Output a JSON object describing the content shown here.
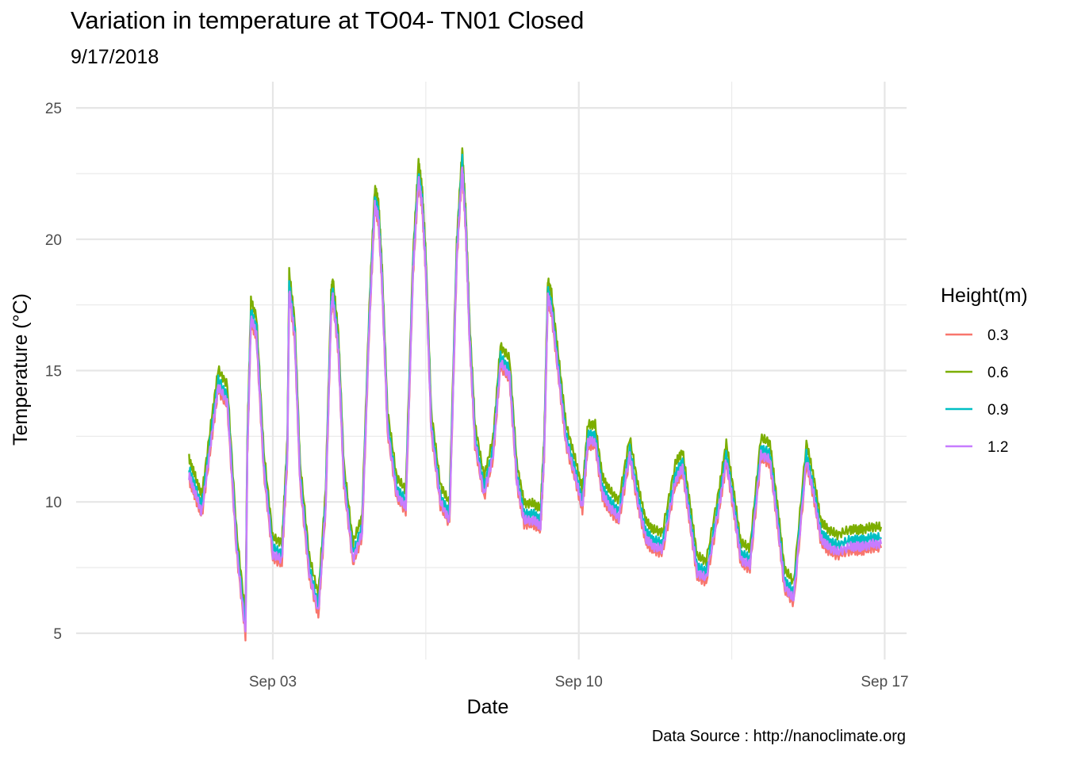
{
  "title": "Variation in temperature at TO04- TN01 Closed",
  "subtitle": "9/17/2018",
  "caption": "Data Source : http://nanoclimate.org",
  "chart_data": {
    "type": "line",
    "title": "Variation in temperature at TO04- TN01 Closed",
    "subtitle": "9/17/2018",
    "xlabel": "Date",
    "ylabel": "Temperature (°C)",
    "x_ticks": [
      {
        "value": "2018-09-03",
        "label": "Sep 03"
      },
      {
        "value": "2018-09-10",
        "label": "Sep 10"
      },
      {
        "value": "2018-09-17",
        "label": "Sep 17"
      }
    ],
    "y_ticks": [
      5,
      10,
      15,
      20,
      25
    ],
    "ylim": [
      4,
      26
    ],
    "xlim": [
      "2018-08-29T12:00",
      "2018-09-17T12:00"
    ],
    "grid": true,
    "legend": {
      "title": "Height(m)",
      "placement": "right"
    },
    "series": [
      {
        "name": "0.3",
        "color": "#F8766D",
        "offset": -0.35
      },
      {
        "name": "0.6",
        "color": "#7CAE00",
        "offset": 0.45
      },
      {
        "name": "0.9",
        "color": "#00BFC4",
        "offset": 0.05
      },
      {
        "name": "1.2",
        "color": "#C77CFF",
        "offset": -0.2
      }
    ],
    "base_curve": {
      "x": [
        "2018-09-01T02:00",
        "2018-09-01T05:00",
        "2018-09-01T09:00",
        "2018-09-01T14:00",
        "2018-09-01T18:00",
        "2018-09-01T23:00",
        "2018-09-02T04:00",
        "2018-09-02T09:00",
        "2018-09-02T10:00",
        "2018-09-02T12:00",
        "2018-09-02T15:00",
        "2018-09-02T19:00",
        "2018-09-03T00:00",
        "2018-09-03T05:00",
        "2018-09-03T08:00",
        "2018-09-03T09:00",
        "2018-09-03T12:00",
        "2018-09-03T15:00",
        "2018-09-03T20:00",
        "2018-09-04T01:00",
        "2018-09-04T05:00",
        "2018-09-04T08:00",
        "2018-09-04T09:00",
        "2018-09-04T12:00",
        "2018-09-04T15:00",
        "2018-09-04T20:00",
        "2018-09-05T01:00",
        "2018-09-05T05:00",
        "2018-09-05T08:00",
        "2018-09-05T10:00",
        "2018-09-05T12:00",
        "2018-09-05T15:00",
        "2018-09-05T20:00",
        "2018-09-06T01:00",
        "2018-09-06T05:00",
        "2018-09-06T08:00",
        "2018-09-06T10:00",
        "2018-09-06T12:00",
        "2018-09-06T15:00",
        "2018-09-06T20:00",
        "2018-09-07T01:00",
        "2018-09-07T05:00",
        "2018-09-07T08:00",
        "2018-09-07T10:00",
        "2018-09-07T12:00",
        "2018-09-07T15:00",
        "2018-09-07T20:00",
        "2018-09-08T01:00",
        "2018-09-08T05:00",
        "2018-09-08T10:00",
        "2018-09-08T14:00",
        "2018-09-08T18:00",
        "2018-09-08T23:00",
        "2018-09-09T03:00",
        "2018-09-09T05:00",
        "2018-09-09T07:00",
        "2018-09-09T09:00",
        "2018-09-09T13:00",
        "2018-09-09T17:00",
        "2018-09-09T22:00",
        "2018-09-10T02:00",
        "2018-09-10T05:00",
        "2018-09-10T09:00",
        "2018-09-10T13:00",
        "2018-09-10T17:00",
        "2018-09-10T22:00",
        "2018-09-11T04:00",
        "2018-09-11T09:00",
        "2018-09-11T13:00",
        "2018-09-11T17:00",
        "2018-09-11T22:00",
        "2018-09-12T05:00",
        "2018-09-12T09:00",
        "2018-09-12T13:00",
        "2018-09-12T17:00",
        "2018-09-12T22:00",
        "2018-09-13T05:00",
        "2018-09-13T09:00",
        "2018-09-13T13:00",
        "2018-09-13T17:00",
        "2018-09-13T22:00",
        "2018-09-14T04:00",
        "2018-09-14T09:00",
        "2018-09-14T13:00",
        "2018-09-14T17:00",
        "2018-09-14T22:00",
        "2018-09-15T05:00",
        "2018-09-15T09:00",
        "2018-09-15T13:00",
        "2018-09-15T17:00",
        "2018-09-15T22:00",
        "2018-09-16T05:00",
        "2018-09-16T09:00",
        "2018-09-16T12:00",
        "2018-09-16T17:00",
        "2018-09-16T22:00"
      ],
      "y": [
        11.2,
        10.6,
        9.8,
        12.5,
        14.6,
        14.0,
        8.5,
        5.2,
        12.0,
        17.2,
        16.6,
        11.5,
        8.2,
        8.0,
        12.0,
        18.3,
        16.5,
        11.0,
        7.5,
        6.0,
        10.0,
        17.5,
        18.0,
        16.0,
        11.0,
        8.0,
        9.0,
        17.0,
        21.5,
        21.0,
        18.5,
        13.0,
        10.5,
        10.0,
        19.0,
        22.5,
        21.5,
        19.0,
        13.0,
        10.2,
        9.5,
        19.5,
        23.0,
        20.5,
        16.5,
        12.5,
        10.5,
        12.0,
        15.5,
        15.0,
        11.0,
        9.5,
        9.5,
        9.3,
        12.0,
        18.0,
        17.5,
        15.0,
        12.5,
        11.2,
        10.0,
        12.5,
        12.5,
        10.5,
        10.0,
        9.6,
        12.0,
        10.0,
        8.8,
        8.5,
        8.4,
        11.0,
        11.5,
        9.5,
        7.5,
        7.3,
        10.0,
        11.8,
        10.0,
        8.0,
        7.8,
        12.0,
        11.8,
        9.5,
        7.0,
        6.5,
        11.8,
        10.5,
        8.8,
        8.5,
        8.3,
        8.5,
        8.5,
        8.5,
        8.6,
        8.6
      ]
    }
  }
}
